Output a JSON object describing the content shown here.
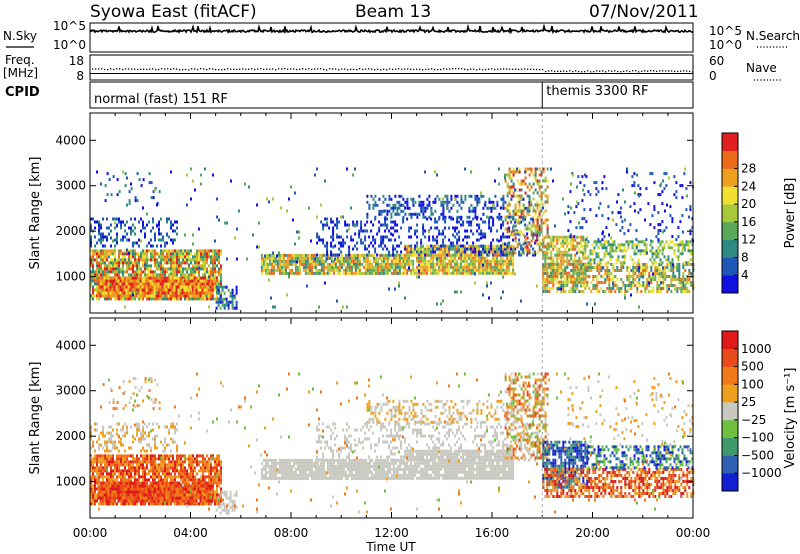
{
  "header": {
    "station": "Syowa East (fitACF)",
    "beam": "Beam 13",
    "date": "07/Nov/2011"
  },
  "top_panels": {
    "nsky_label": "N.Sky",
    "nsky_scale": [
      "10^5",
      "10^0"
    ],
    "nsearch_label": "N.Search",
    "nsearch_scale": [
      "10^5",
      "10^0"
    ],
    "freq_label_1": "Freq.",
    "freq_label_2": "[MHz]",
    "freq_scale": [
      "18",
      "8"
    ],
    "nave_label": "Nave",
    "nave_scale": [
      "60",
      "0"
    ],
    "cpid_label": "CPID",
    "cpid_modes": [
      {
        "text": "normal (fast) 151 RF",
        "start_hour": 0
      },
      {
        "text": "themis 3300 RF",
        "start_hour": 18
      }
    ]
  },
  "chart_data": [
    {
      "type": "heatmap",
      "title": "",
      "ylabel": "Slant Range [km]",
      "xlabel": "",
      "xlim_hours": [
        0,
        24
      ],
      "ylim": [
        200,
        4600
      ],
      "y_ticks": [
        "1000",
        "2000",
        "3000",
        "4000"
      ],
      "colorbar": {
        "label": "Power [dB]",
        "ticks": [
          "4",
          "8",
          "12",
          "16",
          "20",
          "24",
          "28"
        ],
        "colors": [
          "#1010e0",
          "#1f57b8",
          "#2f8a84",
          "#5aa85a",
          "#a8c93a",
          "#f0e030",
          "#f0a020",
          "#ea6a1a",
          "#e02020"
        ]
      }
    },
    {
      "type": "heatmap",
      "title": "",
      "ylabel": "Slant Range [km]",
      "xlabel": "Time UT",
      "xlim_hours": [
        0,
        24
      ],
      "ylim": [
        200,
        4600
      ],
      "y_ticks": [
        "1000",
        "2000",
        "3000",
        "4000"
      ],
      "x_ticks": [
        "00:00",
        "04:00",
        "08:00",
        "12:00",
        "16:00",
        "20:00",
        "00:00"
      ],
      "colorbar": {
        "label": "Velocity [m s⁻¹]",
        "ticks": [
          "1000",
          "500",
          "100",
          "25",
          "−25",
          "−100",
          "−500",
          "−1000"
        ],
        "colors": [
          "#1020d0",
          "#2f5fb0",
          "#3e9a6a",
          "#70c040",
          "#c8c8c0",
          "#f0a020",
          "#f07a1a",
          "#e84a1a",
          "#e01a1a"
        ]
      }
    }
  ]
}
